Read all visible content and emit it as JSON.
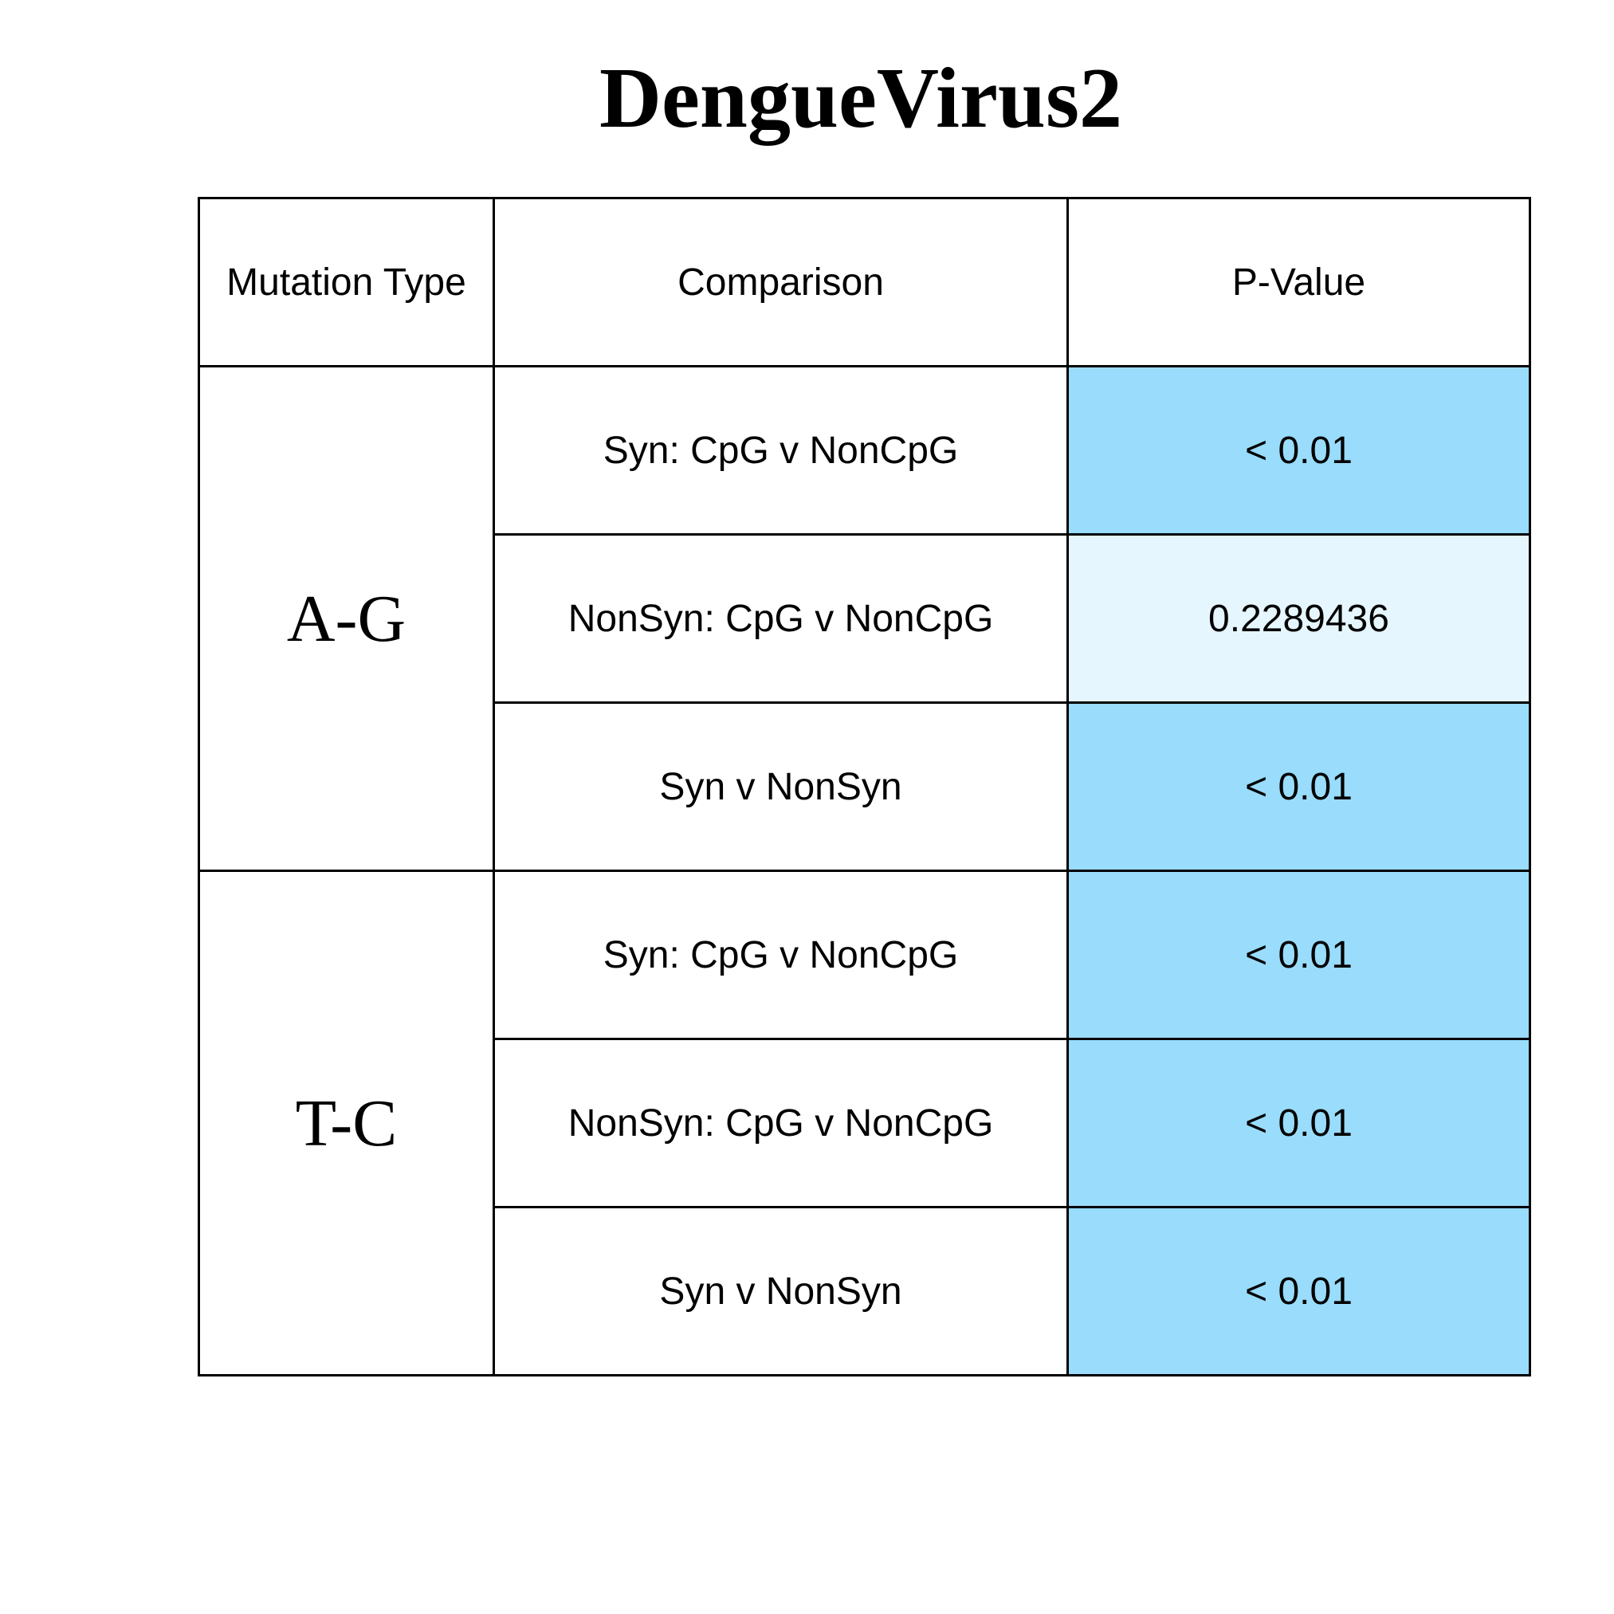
{
  "title": "DengueVirus2",
  "colors": {
    "significant": "#99dcfc",
    "not_significant": "#e5f6fe"
  },
  "chart_data": {
    "type": "table",
    "title": "DengueVirus2",
    "columns": [
      "Mutation Type",
      "Comparison",
      "P-Value"
    ],
    "groups": [
      {
        "mutation_type": "A-G",
        "rows": [
          {
            "comparison": "Syn: CpG v NonCpG",
            "p_value": "< 0.01",
            "significant": true
          },
          {
            "comparison": "NonSyn: CpG v NonCpG",
            "p_value": "0.2289436",
            "significant": false
          },
          {
            "comparison": "Syn v NonSyn",
            "p_value": "< 0.01",
            "significant": true
          }
        ]
      },
      {
        "mutation_type": "T-C",
        "rows": [
          {
            "comparison": "Syn: CpG v NonCpG",
            "p_value": "< 0.01",
            "significant": true
          },
          {
            "comparison": "NonSyn: CpG v NonCpG",
            "p_value": "< 0.01",
            "significant": true
          },
          {
            "comparison": "Syn v NonSyn",
            "p_value": "< 0.01",
            "significant": true
          }
        ]
      }
    ]
  }
}
